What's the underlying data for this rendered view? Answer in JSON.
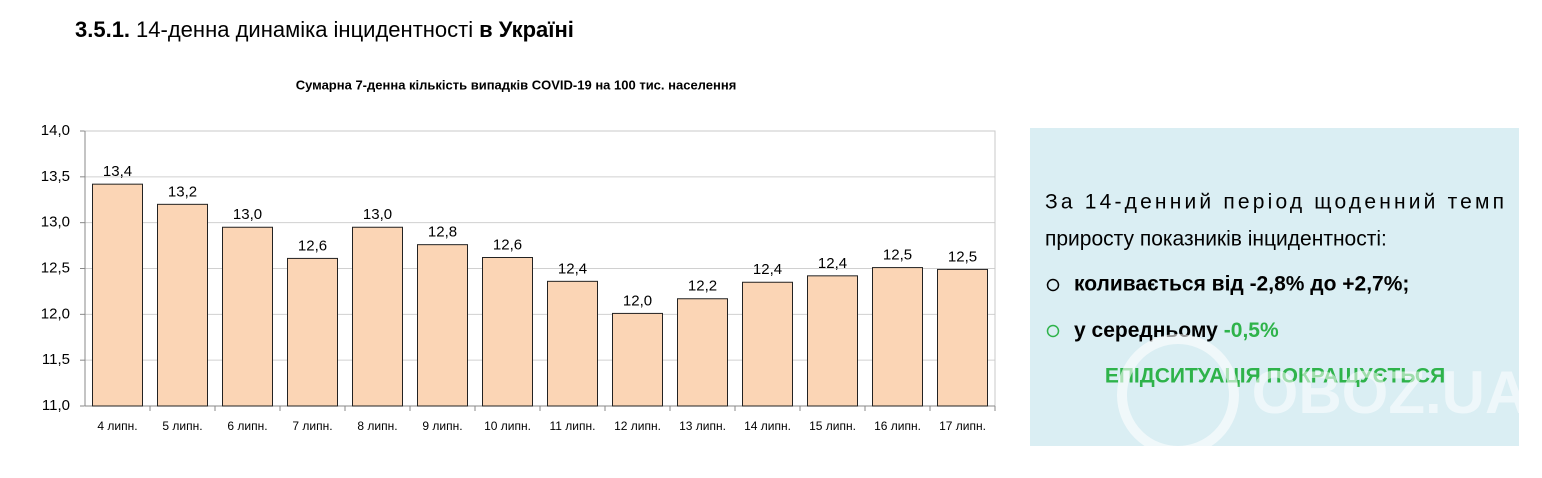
{
  "heading": {
    "number": "3.5.1.",
    "text": "14-денна динаміка інцидентності",
    "emphasis": "в Україні"
  },
  "chart_data": {
    "type": "bar",
    "title": "Сумарна 7-денна кількість випадків COVID-19 на 100 тис. населення",
    "categories": [
      "4 липн.",
      "5 липн.",
      "6 липн.",
      "7 липн.",
      "8 липн.",
      "9 липн.",
      "10 липн.",
      "11 липн.",
      "12 липн.",
      "13 липн.",
      "14 липн.",
      "15 липн.",
      "16 липн.",
      "17 липн."
    ],
    "values": [
      13.42,
      13.2,
      12.95,
      12.61,
      12.95,
      12.76,
      12.62,
      12.36,
      12.01,
      12.17,
      12.35,
      12.42,
      12.51,
      12.49
    ],
    "value_labels": [
      "13,4",
      "13,2",
      "13,0",
      "12,6",
      "13,0",
      "12,8",
      "12,6",
      "12,4",
      "12,0",
      "12,2",
      "12,4",
      "12,4",
      "12,5",
      "12,5"
    ],
    "color": "#fbd5b5",
    "ylim": [
      11,
      14
    ],
    "yticks": [
      {
        "value": 11,
        "label": "11,0"
      },
      {
        "value": 11.5,
        "label": "11,5"
      },
      {
        "value": 12,
        "label": "12,0"
      },
      {
        "value": 12.5,
        "label": "12,5"
      },
      {
        "value": 13,
        "label": "13,0"
      },
      {
        "value": 13.5,
        "label": "13,5"
      },
      {
        "value": 14,
        "label": "14,0"
      }
    ],
    "grid": true
  },
  "summary": {
    "lines": [
      "За 14-денний період щоденний темп",
      "приросту показників інцидентності:"
    ],
    "bullets": [
      {
        "text": "коливається від -2,8% до +2,7%;"
      },
      {
        "text": "у середньому",
        "value": "-0,5%"
      }
    ],
    "conclusion": "ЕПІДСИТУАЦІЯ ПОКРАЩУЄТЬСЯ"
  },
  "watermark": "OBOZ.UA"
}
